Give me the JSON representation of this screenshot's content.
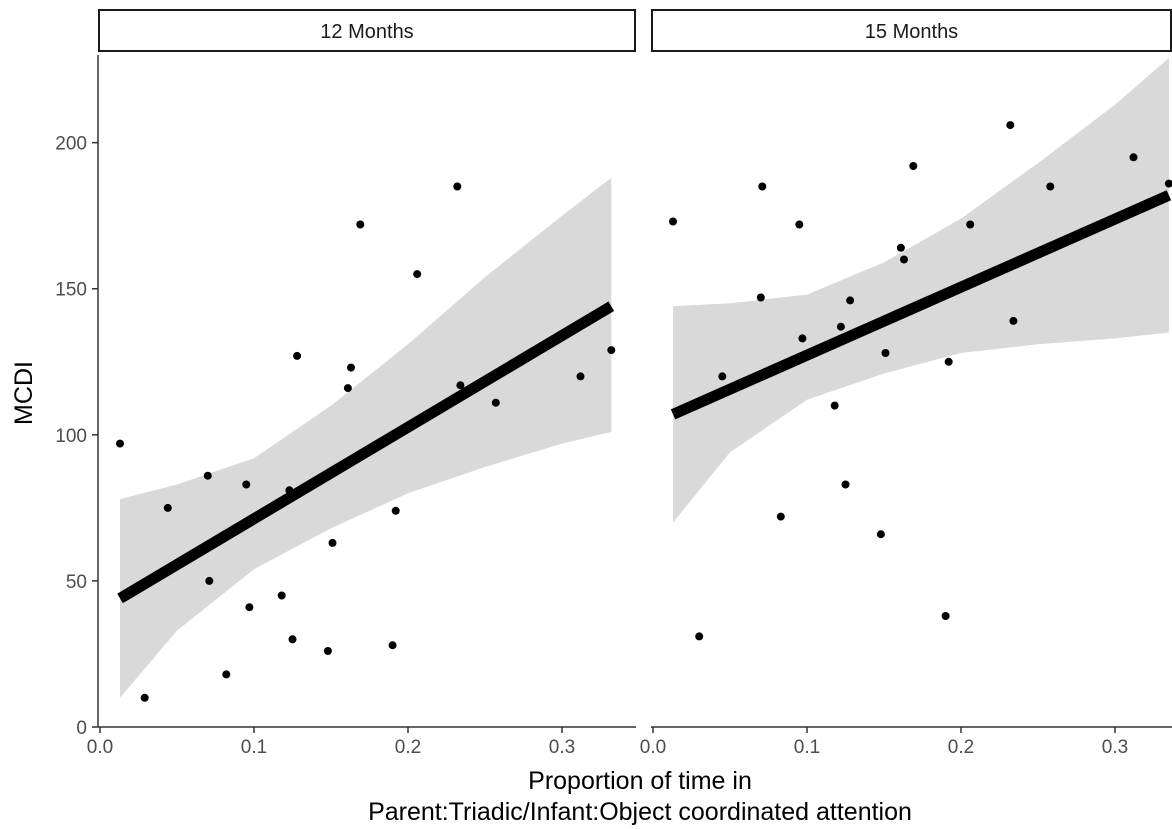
{
  "chart_data": {
    "type": "scatter",
    "ylabel": "MCDI",
    "xlabel_lines": [
      "Proportion of time in",
      "Parent:Triadic/Infant:Object coordinated attention"
    ],
    "xlim": [
      0,
      0.335
    ],
    "ylim": [
      0,
      230
    ],
    "x_ticks": [
      0.0,
      0.1,
      0.2,
      0.3
    ],
    "x_tick_labels": [
      "0.0",
      "0.1",
      "0.2",
      "0.3"
    ],
    "y_ticks": [
      0,
      50,
      100,
      150,
      200
    ],
    "y_tick_labels": [
      "0",
      "50",
      "100",
      "150",
      "200"
    ],
    "grid": false,
    "legend": "none",
    "colors": {
      "points": "#000000",
      "fit_line": "#000000",
      "ribbon": "#d9d9d9",
      "axis": "#333333"
    },
    "panels": [
      {
        "name": "12 Months",
        "points": [
          [
            0.013,
            97
          ],
          [
            0.029,
            10
          ],
          [
            0.044,
            75
          ],
          [
            0.07,
            86
          ],
          [
            0.071,
            50
          ],
          [
            0.082,
            18
          ],
          [
            0.095,
            83
          ],
          [
            0.097,
            41
          ],
          [
            0.118,
            45
          ],
          [
            0.123,
            81
          ],
          [
            0.125,
            30
          ],
          [
            0.128,
            127
          ],
          [
            0.148,
            26
          ],
          [
            0.151,
            63
          ],
          [
            0.161,
            116
          ],
          [
            0.163,
            123
          ],
          [
            0.169,
            172
          ],
          [
            0.19,
            28
          ],
          [
            0.192,
            74
          ],
          [
            0.206,
            155
          ],
          [
            0.232,
            185
          ],
          [
            0.234,
            117
          ],
          [
            0.257,
            111
          ],
          [
            0.312,
            120
          ],
          [
            0.332,
            129
          ]
        ],
        "fit": {
          "x": [
            0.013,
            0.332
          ],
          "y": [
            44,
            144
          ]
        },
        "ribbon": {
          "x": [
            0.013,
            0.05,
            0.1,
            0.15,
            0.2,
            0.25,
            0.3,
            0.332
          ],
          "lower": [
            10,
            33,
            54,
            68,
            80,
            89,
            97,
            101
          ],
          "upper": [
            78,
            83,
            92,
            110,
            131,
            154,
            175,
            188
          ]
        }
      },
      {
        "name": "15 Months",
        "points": [
          [
            0.013,
            173
          ],
          [
            0.03,
            31
          ],
          [
            0.045,
            120
          ],
          [
            0.07,
            147
          ],
          [
            0.071,
            185
          ],
          [
            0.083,
            72
          ],
          [
            0.095,
            172
          ],
          [
            0.097,
            133
          ],
          [
            0.118,
            110
          ],
          [
            0.122,
            137
          ],
          [
            0.125,
            83
          ],
          [
            0.128,
            146
          ],
          [
            0.148,
            66
          ],
          [
            0.151,
            128
          ],
          [
            0.161,
            164
          ],
          [
            0.163,
            160
          ],
          [
            0.169,
            192
          ],
          [
            0.19,
            38
          ],
          [
            0.192,
            125
          ],
          [
            0.206,
            172
          ],
          [
            0.232,
            206
          ],
          [
            0.234,
            139
          ],
          [
            0.258,
            185
          ],
          [
            0.312,
            195
          ],
          [
            0.335,
            186
          ]
        ],
        "fit": {
          "x": [
            0.013,
            0.335
          ],
          "y": [
            107,
            182
          ]
        },
        "ribbon": {
          "x": [
            0.013,
            0.05,
            0.1,
            0.15,
            0.2,
            0.25,
            0.3,
            0.335
          ],
          "lower": [
            70,
            94,
            112,
            121,
            128,
            131,
            133,
            135
          ],
          "upper": [
            144,
            145,
            148,
            159,
            174,
            193,
            213,
            229
          ]
        }
      }
    ]
  }
}
